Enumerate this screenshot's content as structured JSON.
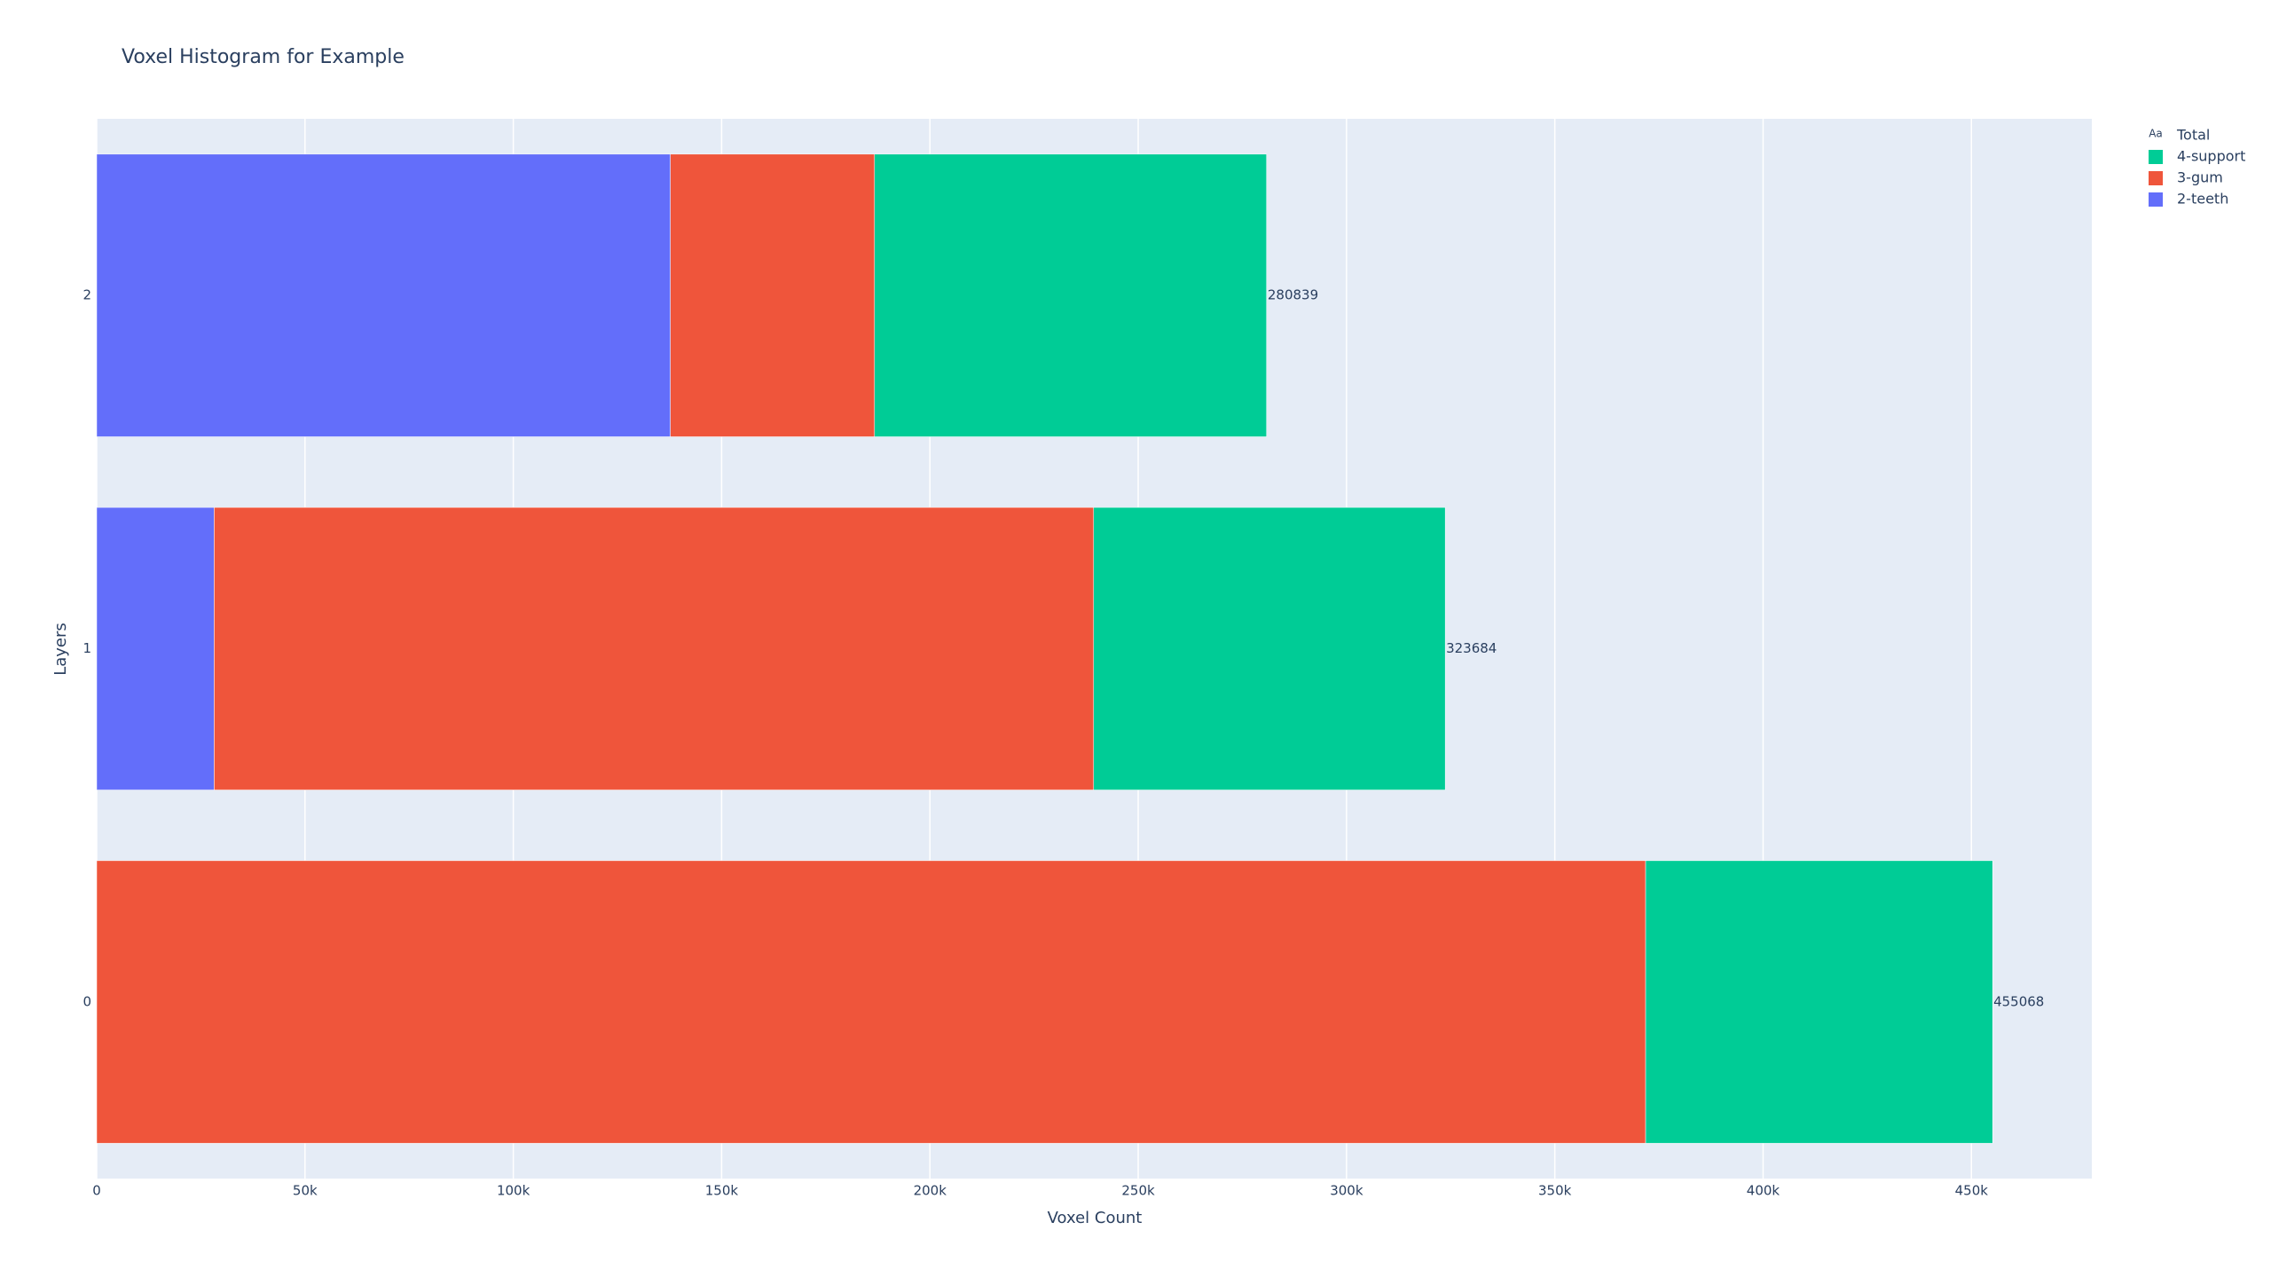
{
  "chart_data": {
    "type": "stacked-hbar",
    "title": "Voxel Histogram for Example",
    "xlabel": "Voxel Count",
    "ylabel": "Layers",
    "categories": [
      "0",
      "1",
      "2"
    ],
    "series": [
      {
        "name": "2-teeth",
        "color": "#636efa",
        "values": [
          0,
          28200,
          137700
        ]
      },
      {
        "name": "3-gum",
        "color": "#ef553b",
        "values": [
          371800,
          211100,
          49000
        ]
      },
      {
        "name": "4-support",
        "color": "#00cc96",
        "values": [
          83300,
          84400,
          94100
        ]
      }
    ],
    "totals": {
      "name": "Total",
      "symbol": "Aa",
      "values": [
        455068,
        323684,
        280839
      ]
    },
    "xlim": [
      0,
      478900
    ],
    "xticks": [
      0,
      {
        "value": 50000,
        "label": "50k"
      },
      {
        "value": 100000,
        "label": "100k"
      },
      {
        "value": 150000,
        "label": "150k"
      },
      {
        "value": 200000,
        "label": "200k"
      },
      {
        "value": 250000,
        "label": "250k"
      },
      {
        "value": 300000,
        "label": "300k"
      },
      {
        "value": 350000,
        "label": "350k"
      },
      {
        "value": 400000,
        "label": "400k"
      },
      {
        "value": 450000,
        "label": "450k"
      }
    ],
    "grid": true,
    "legend": "top-right"
  }
}
